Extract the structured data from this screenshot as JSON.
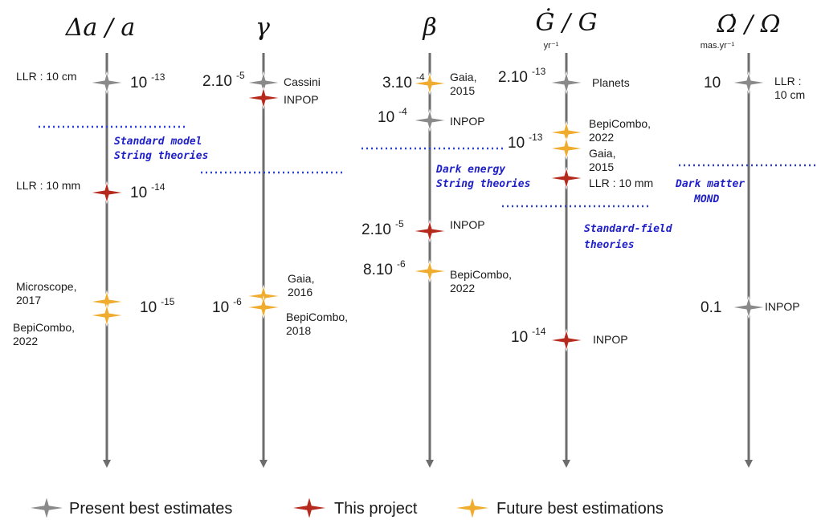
{
  "colors": {
    "present": "#8a8a8a",
    "project": "#b52a1c",
    "future": "#f0ac2e",
    "dotted": "#2b3fd6",
    "axis": "#6d6d6d"
  },
  "columns": [
    {
      "key": "da",
      "header": "Δa / a",
      "subheader": "",
      "values": [
        {
          "base": "10",
          "exp": "-13"
        },
        {
          "base": "10",
          "exp": "-14"
        },
        {
          "base": "10",
          "exp": "-15"
        }
      ],
      "labels": [
        [
          "LLR : 10 cm"
        ],
        [
          "LLR : 10 mm"
        ],
        [
          "Microscope,",
          "2017"
        ],
        [
          "BepiCombo,",
          "2022"
        ]
      ],
      "markers": [
        "present",
        "project",
        "future",
        "future"
      ]
    },
    {
      "key": "gamma",
      "header": "γ",
      "subheader": "",
      "values": [
        {
          "base": "2.10",
          "exp": "-5"
        },
        {
          "base": "10",
          "exp": "-6"
        }
      ],
      "labels": [
        [
          "Cassini"
        ],
        [
          "INPOP"
        ],
        [
          "Gaia,",
          "2016"
        ],
        [
          "BepiCombo,",
          "2018"
        ]
      ],
      "markers": [
        "present",
        "project",
        "future",
        "future"
      ]
    },
    {
      "key": "beta",
      "header": "β",
      "subheader": "",
      "values": [
        {
          "base": "3.10",
          "exp": "-4"
        },
        {
          "base": "10",
          "exp": "-4"
        },
        {
          "base": "2.10",
          "exp": "-5"
        },
        {
          "base": "8.10",
          "exp": "-6"
        }
      ],
      "labels": [
        [
          "Gaia,",
          "2015"
        ],
        [
          "INPOP"
        ],
        [
          "INPOP"
        ],
        [
          "BepiCombo,",
          "2022"
        ]
      ],
      "markers": [
        "future",
        "present",
        "project",
        "future"
      ]
    },
    {
      "key": "gdot",
      "header": "Ġ / G",
      "subheader": "yr⁻¹",
      "values": [
        {
          "base": "2.10",
          "exp": "-13"
        },
        {
          "base": "10",
          "exp": "-13"
        },
        {
          "base": "10",
          "exp": "-14"
        }
      ],
      "labels": [
        [
          "Planets"
        ],
        [
          "BepiCombo,",
          "2022"
        ],
        [
          "Gaia,",
          "2015"
        ],
        [
          "LLR : 10 mm"
        ],
        [
          "INPOP"
        ]
      ],
      "markers": [
        "present",
        "future",
        "future",
        "project",
        "project"
      ]
    },
    {
      "key": "omega",
      "header": "Ω̇ / Ω",
      "subheader": "mas.yr⁻¹",
      "values": [
        {
          "base": "10",
          "exp": ""
        },
        {
          "base": "0.1",
          "exp": ""
        }
      ],
      "labels": [
        [
          "LLR :",
          "10 cm"
        ],
        [
          "INPOP"
        ]
      ],
      "markers": [
        "present",
        "present"
      ]
    }
  ],
  "theory_notes": [
    [
      "Standard model",
      "String theories"
    ],
    [
      "Dark energy",
      "String theories"
    ],
    [
      "Standard-field",
      "theories"
    ],
    [
      "Dark matter",
      "MOND"
    ]
  ],
  "legend": [
    {
      "marker": "present",
      "label": "Present best estimates"
    },
    {
      "marker": "project",
      "label": "This project"
    },
    {
      "marker": "future",
      "label": "Future best estimations"
    }
  ]
}
